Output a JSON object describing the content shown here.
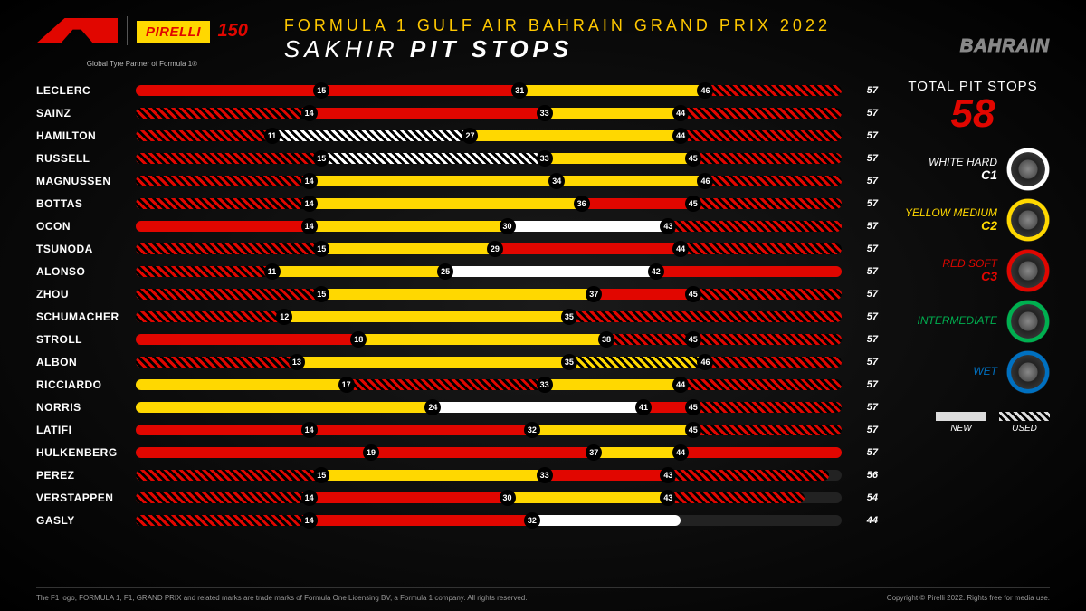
{
  "colors": {
    "hard": "#ffffff",
    "medium": "#ffd800",
    "soft": "#e10600",
    "inter": "#00b050",
    "wet": "#0070c0",
    "accent": "#e10600",
    "title": "#ffc800"
  },
  "header": {
    "pirelli_text": "IRELLI",
    "pirelli_p": "P",
    "anniversary": "150",
    "tagline": "Global Tyre Partner of Formula 1®",
    "event_title": "FORMULA 1 GULF AIR BAHRAIN GRAND PRIX 2022",
    "subtitle_light": "SAKHIR",
    "subtitle_bold": "PIT STOPS",
    "location": "BAHRAIN"
  },
  "chart": {
    "max_laps": 57,
    "drivers": [
      {
        "name": "LECLERC",
        "final": 57,
        "stints": [
          {
            "start": 0,
            "end": 15,
            "c": "soft",
            "used": false
          },
          {
            "start": 15,
            "end": 31,
            "c": "soft",
            "used": false
          },
          {
            "start": 31,
            "end": 46,
            "c": "medium",
            "used": false
          },
          {
            "start": 46,
            "end": 57,
            "c": "soft",
            "used": true
          }
        ]
      },
      {
        "name": "SAINZ",
        "final": 57,
        "stints": [
          {
            "start": 0,
            "end": 14,
            "c": "soft",
            "used": true
          },
          {
            "start": 14,
            "end": 33,
            "c": "soft",
            "used": false
          },
          {
            "start": 33,
            "end": 44,
            "c": "medium",
            "used": false
          },
          {
            "start": 44,
            "end": 57,
            "c": "soft",
            "used": true
          }
        ]
      },
      {
        "name": "HAMILTON",
        "final": 57,
        "stints": [
          {
            "start": 0,
            "end": 11,
            "c": "soft",
            "used": true
          },
          {
            "start": 11,
            "end": 27,
            "c": "hard",
            "used": true
          },
          {
            "start": 27,
            "end": 44,
            "c": "medium",
            "used": false
          },
          {
            "start": 44,
            "end": 57,
            "c": "soft",
            "used": true
          }
        ]
      },
      {
        "name": "RUSSELL",
        "final": 57,
        "stints": [
          {
            "start": 0,
            "end": 15,
            "c": "soft",
            "used": true
          },
          {
            "start": 15,
            "end": 33,
            "c": "hard",
            "used": true
          },
          {
            "start": 33,
            "end": 45,
            "c": "medium",
            "used": false
          },
          {
            "start": 45,
            "end": 57,
            "c": "soft",
            "used": true
          }
        ]
      },
      {
        "name": "MAGNUSSEN",
        "final": 57,
        "stints": [
          {
            "start": 0,
            "end": 14,
            "c": "soft",
            "used": true
          },
          {
            "start": 14,
            "end": 34,
            "c": "medium",
            "used": false
          },
          {
            "start": 34,
            "end": 46,
            "c": "medium",
            "used": false
          },
          {
            "start": 46,
            "end": 57,
            "c": "soft",
            "used": true
          }
        ]
      },
      {
        "name": "BOTTAS",
        "final": 57,
        "stints": [
          {
            "start": 0,
            "end": 14,
            "c": "soft",
            "used": true
          },
          {
            "start": 14,
            "end": 36,
            "c": "medium",
            "used": false
          },
          {
            "start": 36,
            "end": 45,
            "c": "soft",
            "used": false
          },
          {
            "start": 45,
            "end": 57,
            "c": "soft",
            "used": true
          }
        ]
      },
      {
        "name": "OCON",
        "final": 57,
        "stints": [
          {
            "start": 0,
            "end": 14,
            "c": "soft",
            "used": false
          },
          {
            "start": 14,
            "end": 30,
            "c": "medium",
            "used": false
          },
          {
            "start": 30,
            "end": 43,
            "c": "hard",
            "used": false
          },
          {
            "start": 43,
            "end": 57,
            "c": "soft",
            "used": true
          }
        ]
      },
      {
        "name": "TSUNODA",
        "final": 57,
        "stints": [
          {
            "start": 0,
            "end": 15,
            "c": "soft",
            "used": true
          },
          {
            "start": 15,
            "end": 29,
            "c": "medium",
            "used": false
          },
          {
            "start": 29,
            "end": 44,
            "c": "soft",
            "used": false
          },
          {
            "start": 44,
            "end": 57,
            "c": "soft",
            "used": true
          }
        ]
      },
      {
        "name": "ALONSO",
        "final": 57,
        "stints": [
          {
            "start": 0,
            "end": 11,
            "c": "soft",
            "used": true
          },
          {
            "start": 11,
            "end": 25,
            "c": "medium",
            "used": false
          },
          {
            "start": 25,
            "end": 42,
            "c": "hard",
            "used": false
          },
          {
            "start": 42,
            "end": 57,
            "c": "soft",
            "used": false
          }
        ]
      },
      {
        "name": "ZHOU",
        "final": 57,
        "stints": [
          {
            "start": 0,
            "end": 15,
            "c": "soft",
            "used": true
          },
          {
            "start": 15,
            "end": 37,
            "c": "medium",
            "used": false
          },
          {
            "start": 37,
            "end": 45,
            "c": "soft",
            "used": false
          },
          {
            "start": 45,
            "end": 57,
            "c": "soft",
            "used": true
          }
        ]
      },
      {
        "name": "SCHUMACHER",
        "final": 57,
        "stints": [
          {
            "start": 0,
            "end": 12,
            "c": "soft",
            "used": true
          },
          {
            "start": 12,
            "end": 35,
            "c": "medium",
            "used": false
          },
          {
            "start": 35,
            "end": 57,
            "c": "soft",
            "used": true
          }
        ]
      },
      {
        "name": "STROLL",
        "final": 57,
        "stints": [
          {
            "start": 0,
            "end": 18,
            "c": "soft",
            "used": false
          },
          {
            "start": 18,
            "end": 38,
            "c": "medium",
            "used": false
          },
          {
            "start": 38,
            "end": 45,
            "c": "soft",
            "used": true
          },
          {
            "start": 45,
            "end": 57,
            "c": "soft",
            "used": true
          }
        ]
      },
      {
        "name": "ALBON",
        "final": 57,
        "stints": [
          {
            "start": 0,
            "end": 13,
            "c": "soft",
            "used": true
          },
          {
            "start": 13,
            "end": 35,
            "c": "medium",
            "used": false
          },
          {
            "start": 35,
            "end": 46,
            "c": "medium",
            "used": true
          },
          {
            "start": 46,
            "end": 57,
            "c": "soft",
            "used": true
          }
        ]
      },
      {
        "name": "RICCIARDO",
        "final": 57,
        "stints": [
          {
            "start": 0,
            "end": 17,
            "c": "medium",
            "used": false
          },
          {
            "start": 17,
            "end": 33,
            "c": "soft",
            "used": true
          },
          {
            "start": 33,
            "end": 44,
            "c": "medium",
            "used": false
          },
          {
            "start": 44,
            "end": 57,
            "c": "soft",
            "used": true
          }
        ]
      },
      {
        "name": "NORRIS",
        "final": 57,
        "stints": [
          {
            "start": 0,
            "end": 24,
            "c": "medium",
            "used": false
          },
          {
            "start": 24,
            "end": 41,
            "c": "hard",
            "used": false
          },
          {
            "start": 41,
            "end": 45,
            "c": "soft",
            "used": false
          },
          {
            "start": 45,
            "end": 57,
            "c": "soft",
            "used": true
          }
        ]
      },
      {
        "name": "LATIFI",
        "final": 57,
        "stints": [
          {
            "start": 0,
            "end": 14,
            "c": "soft",
            "used": false
          },
          {
            "start": 14,
            "end": 32,
            "c": "soft",
            "used": false
          },
          {
            "start": 32,
            "end": 45,
            "c": "medium",
            "used": false
          },
          {
            "start": 45,
            "end": 57,
            "c": "soft",
            "used": true
          }
        ]
      },
      {
        "name": "HULKENBERG",
        "final": 57,
        "stints": [
          {
            "start": 0,
            "end": 19,
            "c": "soft",
            "used": false
          },
          {
            "start": 19,
            "end": 37,
            "c": "soft",
            "used": false
          },
          {
            "start": 37,
            "end": 44,
            "c": "medium",
            "used": false
          },
          {
            "start": 44,
            "end": 57,
            "c": "soft",
            "used": false
          }
        ]
      },
      {
        "name": "PEREZ",
        "final": 56,
        "stints": [
          {
            "start": 0,
            "end": 15,
            "c": "soft",
            "used": true
          },
          {
            "start": 15,
            "end": 33,
            "c": "medium",
            "used": false
          },
          {
            "start": 33,
            "end": 43,
            "c": "soft",
            "used": false
          },
          {
            "start": 43,
            "end": 56,
            "c": "soft",
            "used": true
          }
        ]
      },
      {
        "name": "VERSTAPPEN",
        "final": 54,
        "stints": [
          {
            "start": 0,
            "end": 14,
            "c": "soft",
            "used": true
          },
          {
            "start": 14,
            "end": 30,
            "c": "soft",
            "used": false
          },
          {
            "start": 30,
            "end": 43,
            "c": "medium",
            "used": false
          },
          {
            "start": 43,
            "end": 54,
            "c": "soft",
            "used": true
          }
        ]
      },
      {
        "name": "GASLY",
        "final": 44,
        "stints": [
          {
            "start": 0,
            "end": 14,
            "c": "soft",
            "used": true
          },
          {
            "start": 14,
            "end": 32,
            "c": "soft",
            "used": false
          },
          {
            "start": 32,
            "end": 44,
            "c": "hard",
            "used": false
          }
        ]
      }
    ]
  },
  "sidebar": {
    "total_label": "TOTAL PIT STOPS",
    "total_value": "58",
    "tires": [
      {
        "name": "WHITE HARD",
        "compound": "C1",
        "ring": "#ffffff",
        "color": "#ffffff"
      },
      {
        "name": "YELLOW MEDIUM",
        "compound": "C2",
        "ring": "#ffd800",
        "color": "#ffd800"
      },
      {
        "name": "RED SOFT",
        "compound": "C3",
        "ring": "#e10600",
        "color": "#e10600"
      },
      {
        "name": "INTERMEDIATE",
        "compound": "",
        "ring": "#00b050",
        "color": "#00b050"
      },
      {
        "name": "WET",
        "compound": "",
        "ring": "#0070c0",
        "color": "#0070c0"
      }
    ],
    "usage": {
      "new": "NEW",
      "used": "USED"
    }
  },
  "footer": {
    "left": "The F1 logo, FORMULA 1, F1, GRAND PRIX and related marks are trade marks of Formula One Licensing BV, a Formula 1 company. All rights reserved.",
    "right": "Copyright © Pirelli 2022. Rights free for media use."
  }
}
